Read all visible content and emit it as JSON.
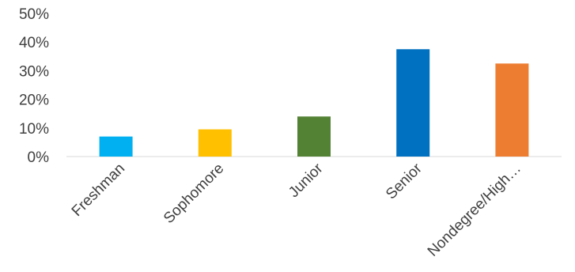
{
  "chart_data": {
    "type": "bar",
    "title": "",
    "xlabel": "",
    "ylabel": "",
    "categories": [
      "Freshman",
      "Sophomore",
      "Junior",
      "Senior",
      "Nondegree/High…"
    ],
    "values": [
      7,
      9.5,
      14,
      37.5,
      32.5
    ],
    "value_unit": "%",
    "colors": [
      "#00B0F0",
      "#FFC000",
      "#548235",
      "#0070C0",
      "#ED7D31"
    ],
    "ylim": [
      0,
      50
    ],
    "yticks": [
      "0%",
      "10%",
      "20%",
      "30%",
      "40%",
      "50%"
    ],
    "ytick_values": [
      0,
      10,
      20,
      30,
      40,
      50
    ],
    "grid": false,
    "legend": "none"
  }
}
